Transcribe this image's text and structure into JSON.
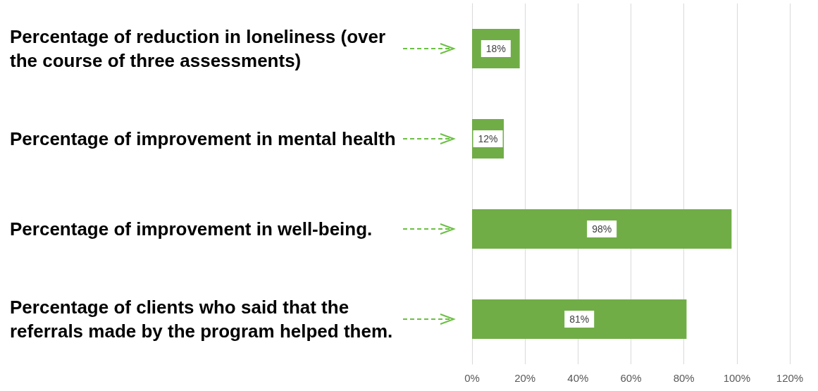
{
  "chart_data": {
    "type": "bar",
    "orientation": "horizontal",
    "categories": [
      "Percentage of reduction in loneliness (over the course of three assessments)",
      "Percentage of improvement in mental health",
      "Percentage of improvement in well-being.",
      "Percentage of clients who said that the referrals made by the program helped them."
    ],
    "values": [
      18,
      12,
      98,
      81
    ],
    "color": "#70ad47",
    "value_labels": [
      "18%",
      "12%",
      "98%",
      "81%"
    ],
    "xlim": [
      0,
      120
    ],
    "xticks": [
      {
        "value": 0,
        "label": "0%"
      },
      {
        "value": 20,
        "label": "20%"
      },
      {
        "value": 40,
        "label": "40%"
      },
      {
        "value": 60,
        "label": "60%"
      },
      {
        "value": 80,
        "label": "80%"
      },
      {
        "value": 100,
        "label": "100%"
      },
      {
        "value": 120,
        "label": "120%"
      }
    ],
    "grid": "x"
  }
}
